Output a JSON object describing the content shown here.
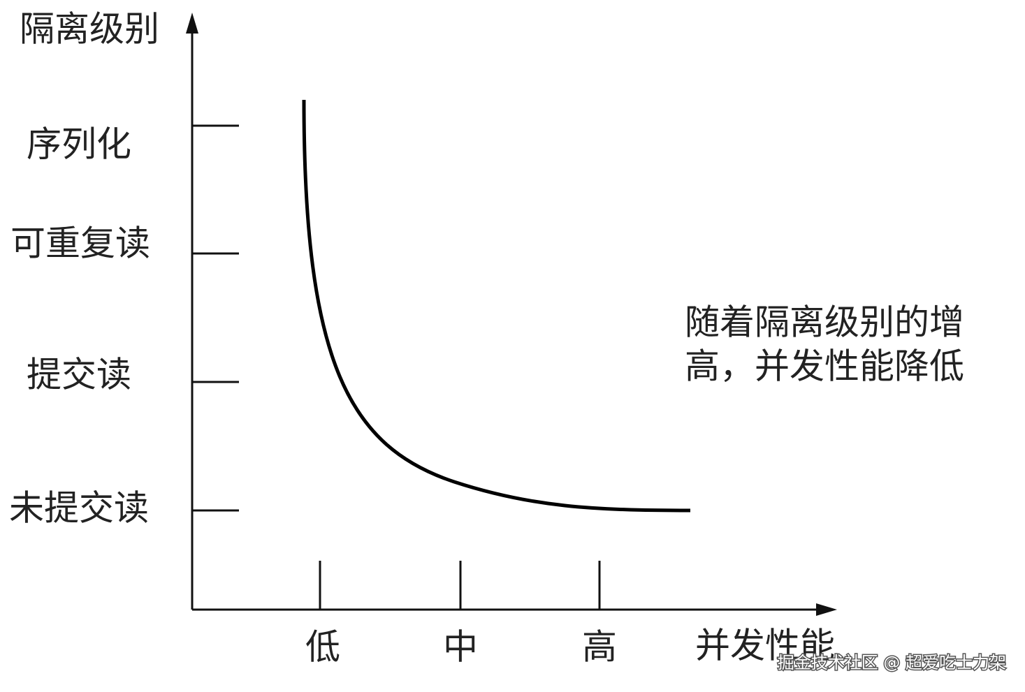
{
  "y_axis": {
    "title": "隔离级别",
    "levels": [
      "序列化",
      "可重复读",
      "提交读",
      "未提交读"
    ]
  },
  "x_axis": {
    "title": "并发性能",
    "levels": [
      "低",
      "中",
      "高"
    ]
  },
  "annotation": {
    "lines": [
      "随着隔离级别的增",
      "高，并发性能降低"
    ]
  },
  "watermark": "掘金技术社区 @ 超爱吃士力架"
}
